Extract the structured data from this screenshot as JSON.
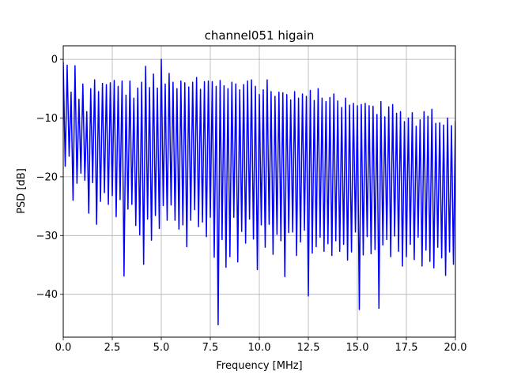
{
  "chart_data": {
    "type": "line",
    "title": "channel051 higain",
    "xlabel": "Frequency [MHz]",
    "ylabel": "PSD [dB]",
    "xlim": [
      0,
      20
    ],
    "ylim": [
      -47.3,
      2.3
    ],
    "xticks": [
      0,
      2.5,
      5,
      7.5,
      10,
      12.5,
      15,
      17.5,
      20
    ],
    "xtick_labels": [
      "0.0",
      "2.5",
      "5.0",
      "7.5",
      "10.0",
      "12.5",
      "15.0",
      "17.5",
      "20.0"
    ],
    "yticks": [
      0,
      -10,
      -20,
      -30,
      -40
    ],
    "ytick_labels": [
      "0",
      "−10",
      "−20",
      "−30",
      "−40"
    ],
    "grid": true,
    "series": [
      {
        "color": "#0000ff",
        "x": [
          0.0,
          0.1,
          0.2,
          0.3,
          0.4,
          0.5,
          0.6,
          0.7,
          0.8,
          0.9,
          1.0,
          1.1,
          1.2,
          1.3,
          1.4,
          1.5,
          1.6,
          1.7,
          1.8,
          1.9,
          2.0,
          2.1,
          2.2,
          2.3,
          2.4,
          2.5,
          2.6,
          2.7,
          2.8,
          2.9,
          3.0,
          3.1,
          3.2,
          3.3,
          3.4,
          3.5,
          3.6,
          3.7,
          3.8,
          3.9,
          4.0,
          4.1,
          4.2,
          4.3,
          4.4,
          4.5,
          4.6,
          4.7,
          4.8,
          4.9,
          5.0,
          5.1,
          5.2,
          5.3,
          5.4,
          5.5,
          5.6,
          5.7,
          5.8,
          5.9,
          6.0,
          6.1,
          6.2,
          6.3,
          6.4,
          6.5,
          6.6,
          6.7,
          6.8,
          6.9,
          7.0,
          7.1,
          7.2,
          7.3,
          7.4,
          7.5,
          7.6,
          7.7,
          7.8,
          7.9,
          8.0,
          8.1,
          8.2,
          8.3,
          8.4,
          8.5,
          8.6,
          8.7,
          8.8,
          8.9,
          9.0,
          9.1,
          9.2,
          9.3,
          9.4,
          9.5,
          9.6,
          9.7,
          9.8,
          9.9,
          10.0,
          10.1,
          10.2,
          10.3,
          10.4,
          10.5,
          10.6,
          10.7,
          10.8,
          10.9,
          11.0,
          11.1,
          11.2,
          11.3,
          11.4,
          11.5,
          11.6,
          11.7,
          11.8,
          11.9,
          12.0,
          12.1,
          12.2,
          12.3,
          12.4,
          12.5,
          12.6,
          12.7,
          12.8,
          12.9,
          13.0,
          13.1,
          13.2,
          13.3,
          13.4,
          13.5,
          13.6,
          13.7,
          13.8,
          13.9,
          14.0,
          14.1,
          14.2,
          14.3,
          14.4,
          14.5,
          14.6,
          14.7,
          14.8,
          14.9,
          15.0,
          15.1,
          15.2,
          15.3,
          15.4,
          15.5,
          15.6,
          15.7,
          15.8,
          15.9,
          16.0,
          16.1,
          16.2,
          16.3,
          16.4,
          16.5,
          16.6,
          16.7,
          16.8,
          16.9,
          17.0,
          17.1,
          17.2,
          17.3,
          17.4,
          17.5,
          17.6,
          17.7,
          17.8,
          17.9,
          18.0,
          18.1,
          18.2,
          18.3,
          18.4,
          18.5,
          18.6,
          18.7,
          18.8,
          18.9,
          19.0,
          19.1,
          19.2,
          19.3,
          19.4,
          19.5,
          19.6,
          19.7,
          19.8,
          19.9,
          20.0
        ],
        "y": [
          -0.5,
          -18.2,
          -1.0,
          -16.5,
          -5.6,
          -24.0,
          -1.1,
          -21.1,
          -6.8,
          -19.4,
          -4.2,
          -20.6,
          -8.9,
          -26.2,
          -5.0,
          -21.0,
          -3.5,
          -28.1,
          -5.5,
          -24.2,
          -4.1,
          -22.7,
          -4.3,
          -24.7,
          -4.0,
          -23.2,
          -3.6,
          -26.8,
          -4.6,
          -23.9,
          -3.7,
          -36.9,
          -6.1,
          -25.5,
          -3.7,
          -24.7,
          -6.6,
          -28.3,
          -4.9,
          -29.9,
          -3.9,
          -34.9,
          -1.2,
          -27.2,
          -4.8,
          -30.8,
          -2.5,
          -26.6,
          -4.9,
          -28.8,
          0.0,
          -24.9,
          -4.2,
          -27.4,
          -2.4,
          -24.8,
          -3.9,
          -27.4,
          -5.0,
          -28.9,
          -3.7,
          -28.2,
          -4.0,
          -31.9,
          -4.7,
          -27.4,
          -3.9,
          -25.6,
          -3.1,
          -28.5,
          -5.1,
          -27.7,
          -3.8,
          -30.2,
          -3.7,
          -26.9,
          -3.8,
          -33.7,
          -4.6,
          -45.2,
          -3.6,
          -30.7,
          -4.5,
          -35.4,
          -5.0,
          -33.6,
          -3.9,
          -26.9,
          -4.2,
          -34.5,
          -5.2,
          -29.3,
          -4.3,
          -31.3,
          -3.7,
          -27.2,
          -3.5,
          -30.6,
          -4.6,
          -35.8,
          -6.0,
          -28.2,
          -5.2,
          -32.0,
          -3.5,
          -28.1,
          -5.5,
          -33.2,
          -6.3,
          -29.8,
          -5.6,
          -30.9,
          -5.7,
          -37.0,
          -6.0,
          -29.5,
          -6.9,
          -29.4,
          -5.5,
          -33.4,
          -6.6,
          -31.1,
          -5.9,
          -29.1,
          -6.3,
          -40.3,
          -5.3,
          -33.0,
          -7.0,
          -31.9,
          -5.0,
          -30.3,
          -6.6,
          -32.7,
          -7.2,
          -31.4,
          -6.5,
          -33.4,
          -5.9,
          -30.9,
          -7.1,
          -32.7,
          -8.2,
          -31.5,
          -6.6,
          -34.2,
          -7.8,
          -32.8,
          -7.5,
          -29.4,
          -7.9,
          -42.6,
          -7.7,
          -33.3,
          -7.5,
          -30.2,
          -7.9,
          -33.1,
          -8.0,
          -32.4,
          -9.4,
          -42.4,
          -7.2,
          -31.6,
          -9.8,
          -30.7,
          -8.1,
          -33.6,
          -7.7,
          -30.1,
          -9.2,
          -32.7,
          -8.9,
          -35.2,
          -10.6,
          -33.6,
          -10.0,
          -31.5,
          -9.1,
          -34.1,
          -11.4,
          -30.3,
          -10.3,
          -35.2,
          -8.9,
          -32.5,
          -9.7,
          -34.4,
          -8.5,
          -35.5,
          -10.9,
          -32.0,
          -10.8,
          -33.8,
          -11.2,
          -36.8,
          -10.0,
          -32.8,
          -11.3,
          -34.9,
          -10.5
        ]
      }
    ]
  }
}
